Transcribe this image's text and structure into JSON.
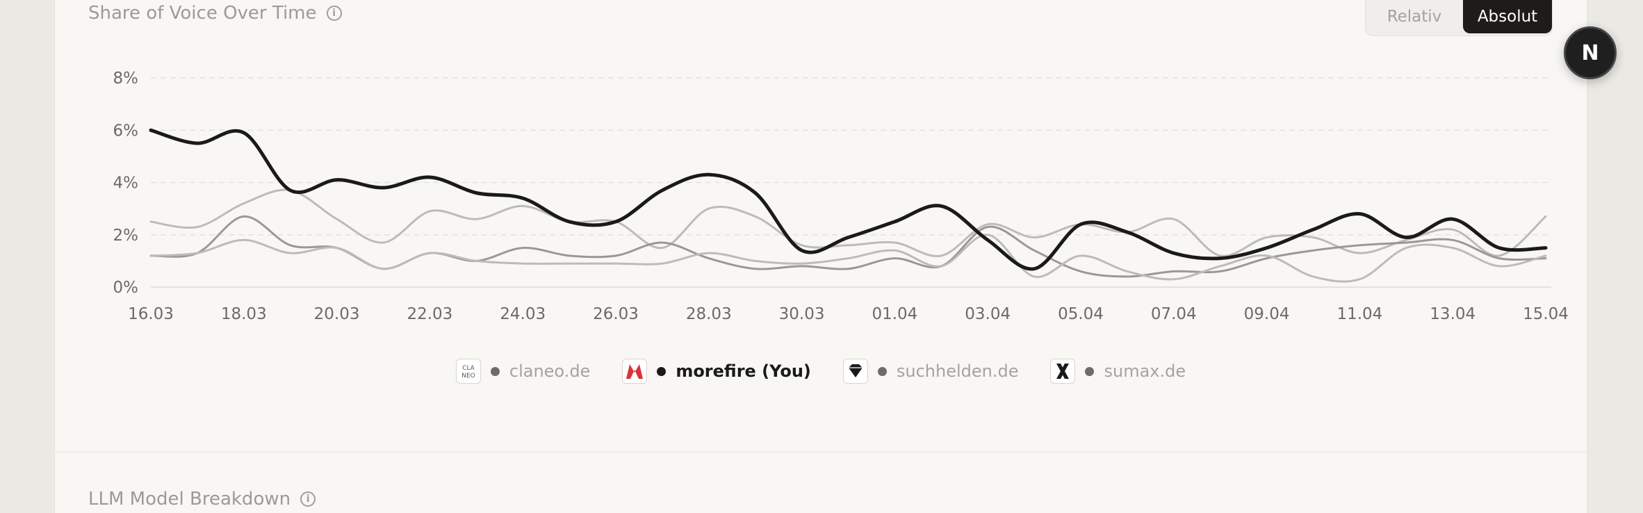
{
  "section1": {
    "title": "Share of Voice Over Time",
    "info_icon": "info-icon"
  },
  "section2": {
    "title": "LLM Model Breakdown",
    "info_icon": "info-icon"
  },
  "toggle": {
    "relativ": "Relativ",
    "absolut": "Absolut",
    "active": "Absolut"
  },
  "badge": {
    "letter": "N"
  },
  "legend": [
    {
      "label": "claneo.de",
      "logo": "claneo-logo",
      "logo_text": "CLANEO",
      "highlight": false
    },
    {
      "label": "morefire (You)",
      "logo": "morefire-logo",
      "highlight": true
    },
    {
      "label": "suchhelden.de",
      "logo": "suchhelden-logo",
      "highlight": false
    },
    {
      "label": "sumax.de",
      "logo": "sumax-logo",
      "highlight": false
    }
  ],
  "colors": {
    "you": "#1a1a1a",
    "competitor": "#bdbbb7",
    "competitor_dark": "#9a9895",
    "accent_red": "#d9343a"
  },
  "chart_data": {
    "type": "line",
    "ylim": [
      0,
      8
    ],
    "yticks": [
      "0%",
      "2%",
      "4%",
      "6%",
      "8%"
    ],
    "xticks": [
      "16.03",
      "18.03",
      "20.03",
      "22.03",
      "24.03",
      "26.03",
      "28.03",
      "30.03",
      "01.04",
      "03.04",
      "05.04",
      "07.04",
      "09.04",
      "11.04",
      "13.04",
      "15.04"
    ],
    "x": [
      "16.03",
      "17.03",
      "18.03",
      "19.03",
      "20.03",
      "21.03",
      "22.03",
      "23.03",
      "24.03",
      "25.03",
      "26.03",
      "27.03",
      "28.03",
      "29.03",
      "30.03",
      "31.03",
      "01.04",
      "02.04",
      "03.04",
      "04.04",
      "05.04",
      "06.04",
      "07.04",
      "08.04",
      "09.04",
      "10.04",
      "11.04",
      "12.04",
      "13.04",
      "14.04",
      "15.04"
    ],
    "series": [
      {
        "name": "morefire (You)",
        "values": [
          6.0,
          5.5,
          5.9,
          3.7,
          4.1,
          3.8,
          4.2,
          3.6,
          3.4,
          2.5,
          2.5,
          3.7,
          4.3,
          3.6,
          1.4,
          1.9,
          2.5,
          3.1,
          1.8,
          0.7,
          2.4,
          2.1,
          1.3,
          1.1,
          1.5,
          2.2,
          2.8,
          1.9,
          2.6,
          1.5,
          1.5
        ]
      },
      {
        "name": "claneo.de",
        "values": [
          2.5,
          2.3,
          3.2,
          3.7,
          2.6,
          1.7,
          2.9,
          2.6,
          3.1,
          2.5,
          2.5,
          1.5,
          3.0,
          2.7,
          1.6,
          1.6,
          1.7,
          1.2,
          2.4,
          1.9,
          2.4,
          2.1,
          2.6,
          1.2,
          1.9,
          1.9,
          1.3,
          1.8,
          2.2,
          1.2,
          2.7
        ]
      },
      {
        "name": "suchhelden.de",
        "values": [
          1.2,
          1.3,
          2.7,
          1.6,
          1.5,
          0.7,
          1.3,
          1.0,
          1.5,
          1.2,
          1.2,
          1.7,
          1.1,
          0.7,
          0.8,
          0.7,
          1.1,
          0.8,
          2.3,
          1.4,
          0.6,
          0.4,
          0.6,
          0.6,
          1.1,
          1.4,
          1.6,
          1.7,
          1.8,
          1.1,
          1.1
        ]
      },
      {
        "name": "sumax.de",
        "values": [
          1.2,
          1.3,
          1.8,
          1.3,
          1.5,
          0.7,
          1.3,
          1.0,
          0.9,
          0.9,
          0.9,
          0.9,
          1.3,
          1.0,
          0.9,
          1.1,
          1.4,
          0.8,
          2.0,
          0.4,
          1.2,
          0.6,
          0.3,
          0.8,
          1.2,
          0.4,
          0.3,
          1.5,
          1.5,
          0.8,
          1.2
        ]
      }
    ]
  }
}
